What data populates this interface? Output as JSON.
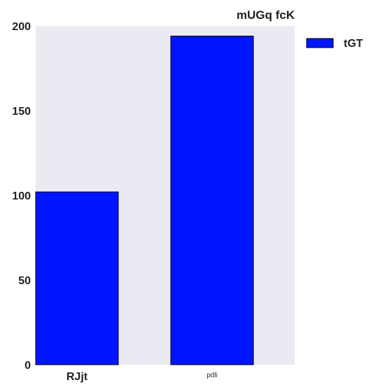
{
  "chart_data": {
    "type": "bar",
    "title": "mUGq  fcK",
    "categories": [
      "RJjt",
      "pdli"
    ],
    "series": [
      {
        "name": "tGT",
        "values": [
          102,
          194
        ]
      }
    ],
    "ylim": [
      0,
      200
    ],
    "yticks": [
      0,
      50,
      100,
      150,
      200
    ],
    "grid": false,
    "legend": "right-outside-top",
    "colors": {
      "bar": "#0015ff",
      "bar_edge": "#000000",
      "plot_background": "#eaeaf2"
    }
  }
}
